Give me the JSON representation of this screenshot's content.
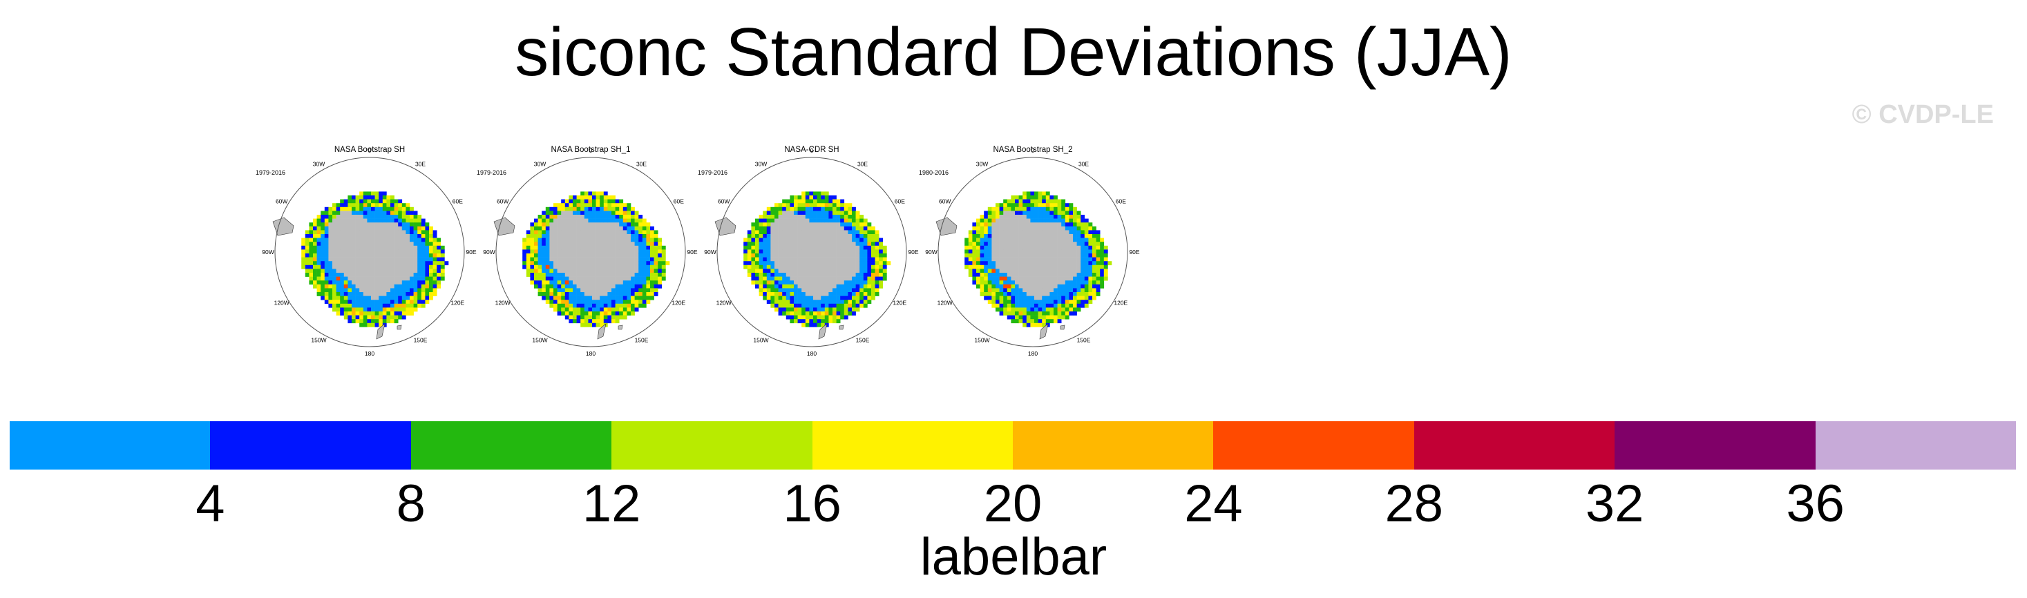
{
  "title": "siconc Standard Deviations (JJA)",
  "watermark": "© CVDP-LE",
  "panels": [
    {
      "title": "NASA Bootstrap SH",
      "years": "1979-2016"
    },
    {
      "title": "NASA Bootstrap SH_1",
      "years": "1979-2016"
    },
    {
      "title": "NASA-CDR SH",
      "years": "1979-2016"
    },
    {
      "title": "NASA Bootstrap SH_2",
      "years": "1980-2016"
    }
  ],
  "longitude_labels": [
    "0",
    "30E",
    "60E",
    "90E",
    "120E",
    "150E",
    "180",
    "150W",
    "120W",
    "90W",
    "60W",
    "30W"
  ],
  "colors": {
    "land": "#bdbdbd",
    "ocean_low": "#0099ff",
    "bins": [
      "#0099ff",
      "#0015ff",
      "#23b80f",
      "#b8eb00",
      "#fff200",
      "#ffb800",
      "#ff4a00",
      "#c20035",
      "#800068",
      "#c7aad8"
    ]
  },
  "labelbar": {
    "ticks": [
      "4",
      "8",
      "12",
      "16",
      "20",
      "24",
      "28",
      "32",
      "36"
    ],
    "label": "labelbar"
  }
}
